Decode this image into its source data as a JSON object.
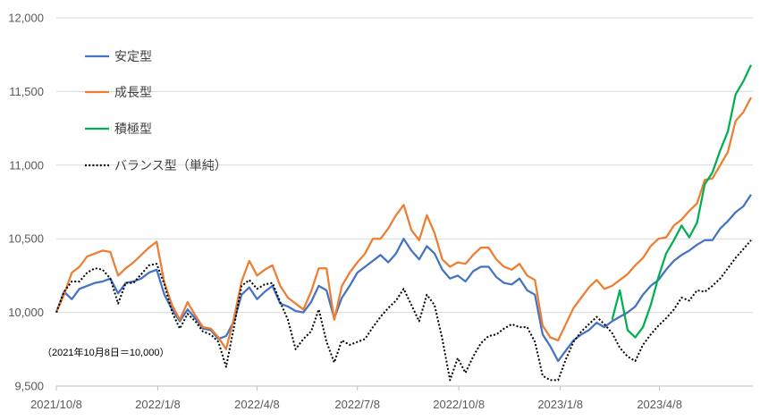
{
  "chart_data": {
    "type": "line",
    "ylim": [
      9500,
      12000
    ],
    "xlim": [
      "2021-10-08",
      "2023-06-30"
    ],
    "yticks": [
      9500,
      10000,
      10500,
      11000,
      11500,
      12000
    ],
    "ytick_labels": [
      "9,500",
      "10,000",
      "10,500",
      "11,000",
      "11,500",
      "12,000"
    ],
    "xtick_labels": [
      "2021/10/8",
      "2022/1/8",
      "2022/4/8",
      "2022/7/8",
      "2022/10/8",
      "2023/1/8",
      "2023/4/8"
    ],
    "grid": {
      "horizontal": true,
      "vertical": false
    },
    "legend": {
      "placement": "top-left"
    },
    "annotation": "（2021年10月8日＝10,000）",
    "x": [
      "2021-10-08",
      "2021-10-15",
      "2021-10-22",
      "2021-10-29",
      "2021-11-05",
      "2021-11-12",
      "2021-11-19",
      "2021-11-26",
      "2021-12-03",
      "2021-12-10",
      "2021-12-17",
      "2021-12-24",
      "2021-12-31",
      "2022-01-07",
      "2022-01-14",
      "2022-01-21",
      "2022-01-28",
      "2022-02-04",
      "2022-02-11",
      "2022-02-18",
      "2022-02-25",
      "2022-03-04",
      "2022-03-11",
      "2022-03-18",
      "2022-03-25",
      "2022-04-01",
      "2022-04-08",
      "2022-04-15",
      "2022-04-22",
      "2022-04-29",
      "2022-05-06",
      "2022-05-13",
      "2022-05-20",
      "2022-05-27",
      "2022-06-03",
      "2022-06-10",
      "2022-06-17",
      "2022-06-24",
      "2022-07-01",
      "2022-07-08",
      "2022-07-15",
      "2022-07-22",
      "2022-07-29",
      "2022-08-05",
      "2022-08-12",
      "2022-08-19",
      "2022-08-26",
      "2022-09-02",
      "2022-09-09",
      "2022-09-16",
      "2022-09-23",
      "2022-09-30",
      "2022-10-07",
      "2022-10-14",
      "2022-10-21",
      "2022-10-28",
      "2022-11-04",
      "2022-11-11",
      "2022-11-18",
      "2022-11-25",
      "2022-12-02",
      "2022-12-09",
      "2022-12-16",
      "2022-12-23",
      "2022-12-30",
      "2023-01-06",
      "2023-01-13",
      "2023-01-20",
      "2023-01-27",
      "2023-02-03",
      "2023-02-10",
      "2023-02-17",
      "2023-02-24",
      "2023-03-03",
      "2023-03-10",
      "2023-03-17",
      "2023-03-24",
      "2023-03-31",
      "2023-04-07",
      "2023-04-14",
      "2023-04-21",
      "2023-04-28",
      "2023-05-05",
      "2023-05-12",
      "2023-05-19",
      "2023-05-26",
      "2023-06-02",
      "2023-06-09",
      "2023-06-16",
      "2023-06-23",
      "2023-06-30"
    ],
    "series": [
      {
        "name": "安定型",
        "color": "#4472c4",
        "line_style": "solid",
        "values": [
          10000,
          10140,
          10090,
          10160,
          10180,
          10200,
          10210,
          10230,
          10130,
          10200,
          10210,
          10230,
          10270,
          10290,
          10120,
          10020,
          9940,
          10020,
          9960,
          9890,
          9880,
          9820,
          9840,
          9940,
          10120,
          10170,
          10090,
          10140,
          10180,
          10060,
          10040,
          10010,
          10000,
          10070,
          10180,
          10150,
          9960,
          10100,
          10180,
          10270,
          10310,
          10350,
          10390,
          10340,
          10400,
          10500,
          10420,
          10360,
          10450,
          10400,
          10290,
          10230,
          10250,
          10210,
          10280,
          10310,
          10310,
          10240,
          10200,
          10190,
          10230,
          10150,
          10120,
          9850,
          9770,
          9670,
          9740,
          9810,
          9850,
          9880,
          9930,
          9900,
          9940,
          9970,
          10000,
          10040,
          10120,
          10180,
          10220,
          10290,
          10350,
          10390,
          10420,
          10460,
          10490,
          10490,
          10570,
          10620,
          10680,
          10720,
          10800
        ]
      },
      {
        "name": "成長型",
        "color": "#ed7d31",
        "line_style": "solid",
        "values": [
          10000,
          10120,
          10270,
          10310,
          10380,
          10400,
          10420,
          10410,
          10250,
          10300,
          10340,
          10390,
          10440,
          10480,
          10200,
          10050,
          9950,
          10070,
          9980,
          9900,
          9890,
          9830,
          9750,
          9960,
          10210,
          10350,
          10250,
          10290,
          10320,
          10180,
          10100,
          10060,
          10020,
          10140,
          10300,
          10300,
          9950,
          10180,
          10270,
          10340,
          10400,
          10500,
          10500,
          10570,
          10660,
          10730,
          10560,
          10490,
          10660,
          10540,
          10360,
          10310,
          10340,
          10330,
          10390,
          10440,
          10440,
          10360,
          10310,
          10290,
          10330,
          10250,
          10220,
          9910,
          9830,
          9810,
          9920,
          10030,
          10100,
          10170,
          10220,
          10160,
          10180,
          10220,
          10260,
          10320,
          10370,
          10450,
          10500,
          10510,
          10590,
          10630,
          10690,
          10740,
          10900,
          10910,
          11000,
          11090,
          11300,
          11360,
          11460
        ]
      },
      {
        "name": "積極型",
        "color": "#00b050",
        "line_style": "solid",
        "values": [
          null,
          null,
          null,
          null,
          null,
          null,
          null,
          null,
          null,
          null,
          null,
          null,
          null,
          null,
          null,
          null,
          null,
          null,
          null,
          null,
          null,
          null,
          null,
          null,
          null,
          null,
          null,
          null,
          null,
          null,
          null,
          null,
          null,
          null,
          null,
          null,
          null,
          null,
          null,
          null,
          null,
          null,
          null,
          null,
          null,
          null,
          null,
          null,
          null,
          null,
          null,
          null,
          null,
          null,
          null,
          null,
          null,
          null,
          null,
          null,
          null,
          null,
          null,
          null,
          null,
          null,
          null,
          null,
          null,
          null,
          null,
          null,
          9950,
          10150,
          9880,
          9830,
          9900,
          10050,
          10240,
          10400,
          10490,
          10590,
          10510,
          10610,
          10870,
          10950,
          11100,
          11230,
          11480,
          11570,
          11680
        ]
      },
      {
        "name": "バランス型（単純）",
        "color": "#000000",
        "line_style": "dotted",
        "values": [
          10000,
          10140,
          10210,
          10210,
          10270,
          10300,
          10290,
          10230,
          10060,
          10200,
          10200,
          10260,
          10320,
          10330,
          10190,
          10000,
          9890,
          9990,
          9940,
          9870,
          9850,
          9800,
          9630,
          9900,
          10180,
          10220,
          10160,
          10190,
          10200,
          10070,
          9950,
          9750,
          9820,
          9870,
          10020,
          9800,
          9660,
          9810,
          9780,
          9800,
          9820,
          9900,
          9970,
          10030,
          10080,
          10160,
          10050,
          9940,
          10120,
          10050,
          9820,
          9540,
          9690,
          9590,
          9700,
          9790,
          9840,
          9850,
          9890,
          9920,
          9900,
          9900,
          9800,
          9570,
          9540,
          9540,
          9680,
          9800,
          9870,
          9920,
          9970,
          9920,
          9860,
          9760,
          9700,
          9670,
          9780,
          9850,
          9910,
          9960,
          10020,
          10100,
          10080,
          10150,
          10140,
          10180,
          10230,
          10300,
          10370,
          10430,
          10490
        ]
      }
    ]
  }
}
